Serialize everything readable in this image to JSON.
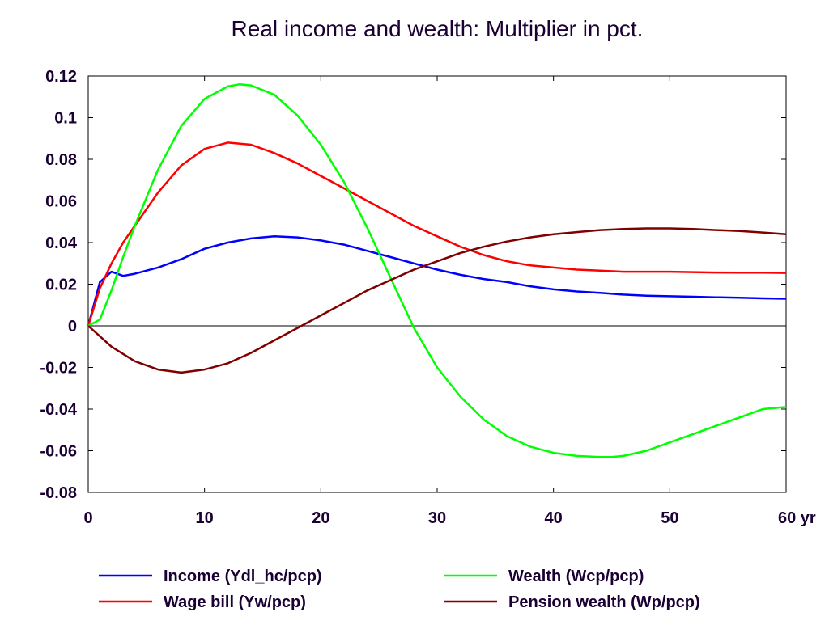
{
  "chart_data": {
    "type": "line",
    "title": "Real income and wealth: Multiplier in pct.",
    "xlabel": "",
    "ylabel": "",
    "x_unit_suffix": "yr",
    "xlim": [
      0,
      60
    ],
    "ylim": [
      -0.08,
      0.12
    ],
    "xticks": [
      0,
      10,
      20,
      30,
      40,
      50,
      60
    ],
    "xtick_labels": [
      "0",
      "10",
      "20",
      "30",
      "40",
      "50",
      "60 yr"
    ],
    "yticks": [
      0.12,
      0.1,
      0.08,
      0.06,
      0.04,
      0.02,
      0,
      -0.02,
      -0.04,
      -0.06,
      -0.08
    ],
    "ytick_labels": [
      "0.12",
      "0.1",
      "0.08",
      "0.06",
      "0.04",
      "0.02",
      "0",
      "-0.02",
      "-0.04",
      "-0.06",
      "-0.08"
    ],
    "grid": false,
    "zero_line": true,
    "legend_position": "bottom",
    "series": [
      {
        "name": "Income (Ydl_hc/pcp)",
        "color": "#0000ff",
        "x": [
          0,
          1,
          2,
          3,
          4,
          6,
          8,
          10,
          12,
          14,
          16,
          18,
          20,
          22,
          24,
          26,
          28,
          30,
          32,
          34,
          36,
          38,
          40,
          42,
          44,
          46,
          48,
          50,
          52,
          54,
          56,
          58,
          60
        ],
        "y": [
          0,
          0.021,
          0.026,
          0.024,
          0.025,
          0.028,
          0.032,
          0.037,
          0.04,
          0.042,
          0.043,
          0.0425,
          0.041,
          0.039,
          0.036,
          0.033,
          0.03,
          0.027,
          0.0245,
          0.0225,
          0.021,
          0.019,
          0.0175,
          0.0165,
          0.0158,
          0.015,
          0.0145,
          0.0142,
          0.014,
          0.0137,
          0.0135,
          0.0132,
          0.013
        ]
      },
      {
        "name": "Wage bill (Yw/pcp)",
        "color": "#ff0000",
        "x": [
          0,
          1,
          2,
          3,
          4,
          6,
          8,
          10,
          12,
          14,
          16,
          18,
          20,
          22,
          24,
          26,
          28,
          30,
          32,
          34,
          36,
          38,
          40,
          42,
          44,
          46,
          48,
          50,
          52,
          54,
          56,
          58,
          60
        ],
        "y": [
          0,
          0.018,
          0.03,
          0.04,
          0.048,
          0.064,
          0.077,
          0.085,
          0.088,
          0.087,
          0.083,
          0.078,
          0.072,
          0.066,
          0.06,
          0.054,
          0.048,
          0.043,
          0.038,
          0.034,
          0.031,
          0.029,
          0.028,
          0.027,
          0.0265,
          0.026,
          0.026,
          0.026,
          0.0258,
          0.0256,
          0.0255,
          0.0255,
          0.0254
        ]
      },
      {
        "name": "Wealth (Wcp/pcp)",
        "color": "#00ff00",
        "x": [
          0,
          1,
          2,
          3,
          4,
          6,
          8,
          10,
          12,
          13,
          14,
          16,
          18,
          20,
          22,
          24,
          26,
          28,
          30,
          32,
          34,
          36,
          38,
          40,
          42,
          44,
          45,
          46,
          48,
          50,
          52,
          54,
          56,
          58,
          60
        ],
        "y": [
          0,
          0.003,
          0.017,
          0.033,
          0.048,
          0.075,
          0.096,
          0.109,
          0.115,
          0.116,
          0.1155,
          0.111,
          0.101,
          0.087,
          0.069,
          0.047,
          0.023,
          -0.001,
          -0.02,
          -0.034,
          -0.045,
          -0.053,
          -0.058,
          -0.061,
          -0.0625,
          -0.063,
          -0.063,
          -0.0625,
          -0.06,
          -0.056,
          -0.052,
          -0.048,
          -0.044,
          -0.04,
          -0.039
        ]
      },
      {
        "name": "Pension wealth (Wp/pcp)",
        "color": "#800000",
        "x": [
          0,
          2,
          4,
          6,
          8,
          10,
          12,
          14,
          16,
          18,
          20,
          22,
          24,
          26,
          28,
          30,
          32,
          34,
          36,
          38,
          40,
          42,
          44,
          46,
          48,
          50,
          52,
          54,
          56,
          58,
          60
        ],
        "y": [
          0,
          -0.01,
          -0.017,
          -0.021,
          -0.0225,
          -0.021,
          -0.018,
          -0.013,
          -0.007,
          -0.001,
          0.005,
          0.011,
          0.017,
          0.022,
          0.027,
          0.031,
          0.035,
          0.038,
          0.0405,
          0.0425,
          0.044,
          0.045,
          0.046,
          0.0465,
          0.0468,
          0.0468,
          0.0465,
          0.046,
          0.0455,
          0.0448,
          0.044
        ]
      }
    ]
  }
}
